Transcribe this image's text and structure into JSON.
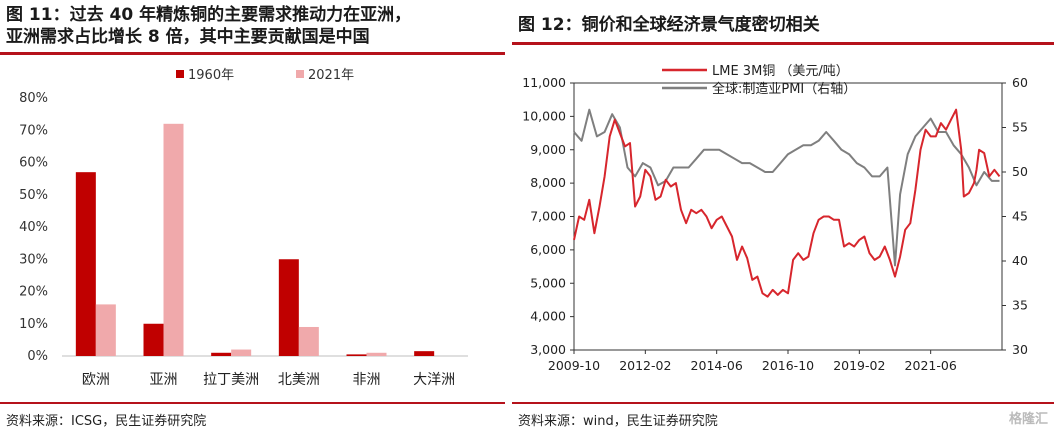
{
  "left_panel": {
    "title_line1": "图 11：过去 40 年精炼铜的主要需求推动力在亚洲，",
    "title_line2": "亚洲需求占比增长 8 倍，其中主要贡献国是中国",
    "source": "资料来源：ICSG，民生证券研究院"
  },
  "right_panel": {
    "title": "图 12：铜价和全球经济景气度密切相关",
    "source": "资料来源：wind，民生证券研究院",
    "watermark": "格隆汇"
  },
  "chart_data": [
    {
      "type": "bar",
      "categories": [
        "欧洲",
        "亚洲",
        "拉丁美洲",
        "北美洲",
        "非洲",
        "大洋洲"
      ],
      "series": [
        {
          "name": "1960年",
          "color": "#c00000",
          "values": [
            57,
            10,
            1,
            30,
            0.5,
            1.5
          ]
        },
        {
          "name": "2021年",
          "color": "#f0a9ab",
          "values": [
            16,
            72,
            2,
            9,
            1,
            0
          ]
        }
      ],
      "ylim": [
        0,
        80
      ],
      "yticks": [
        "0%",
        "10%",
        "20%",
        "30%",
        "40%",
        "50%",
        "60%",
        "70%",
        "80%"
      ],
      "legend_position": "top"
    },
    {
      "type": "line",
      "x_ticks": [
        "2009-10",
        "2012-02",
        "2014-06",
        "2016-10",
        "2019-02",
        "2021-06"
      ],
      "left_yticks": [
        "3,000",
        "4,000",
        "5,000",
        "6,000",
        "7,000",
        "8,000",
        "9,000",
        "10,000",
        "11,000"
      ],
      "right_yticks": [
        "30",
        "35",
        "40",
        "45",
        "50",
        "55",
        "60"
      ],
      "ylim_left": [
        3000,
        11000
      ],
      "ylim_right": [
        30,
        60
      ],
      "xlim": [
        "2009-10",
        "2023-10"
      ],
      "legend_position": "top-center",
      "series": [
        {
          "name": "LME 3M铜 （美元/吨）",
          "axis": "left",
          "color": "#d7262d",
          "points": [
            [
              "2009-10",
              6300
            ],
            [
              "2009-12",
              7000
            ],
            [
              "2010-02",
              6900
            ],
            [
              "2010-04",
              7500
            ],
            [
              "2010-06",
              6500
            ],
            [
              "2010-08",
              7300
            ],
            [
              "2010-10",
              8200
            ],
            [
              "2010-12",
              9400
            ],
            [
              "2011-02",
              9900
            ],
            [
              "2011-04",
              9500
            ],
            [
              "2011-06",
              9100
            ],
            [
              "2011-08",
              9200
            ],
            [
              "2011-10",
              7300
            ],
            [
              "2011-12",
              7600
            ],
            [
              "2012-02",
              8400
            ],
            [
              "2012-04",
              8200
            ],
            [
              "2012-06",
              7500
            ],
            [
              "2012-08",
              7600
            ],
            [
              "2012-10",
              8100
            ],
            [
              "2012-12",
              7900
            ],
            [
              "2013-02",
              8000
            ],
            [
              "2013-04",
              7200
            ],
            [
              "2013-06",
              6800
            ],
            [
              "2013-08",
              7200
            ],
            [
              "2013-10",
              7100
            ],
            [
              "2013-12",
              7200
            ],
            [
              "2014-02",
              7000
            ],
            [
              "2014-04",
              6650
            ],
            [
              "2014-06",
              6900
            ],
            [
              "2014-08",
              7000
            ],
            [
              "2014-10",
              6700
            ],
            [
              "2014-12",
              6400
            ],
            [
              "2015-02",
              5700
            ],
            [
              "2015-04",
              6100
            ],
            [
              "2015-06",
              5750
            ],
            [
              "2015-08",
              5100
            ],
            [
              "2015-10",
              5200
            ],
            [
              "2015-12",
              4700
            ],
            [
              "2016-02",
              4600
            ],
            [
              "2016-04",
              4800
            ],
            [
              "2016-06",
              4650
            ],
            [
              "2016-08",
              4800
            ],
            [
              "2016-10",
              4700
            ],
            [
              "2016-12",
              5700
            ],
            [
              "2017-02",
              5900
            ],
            [
              "2017-04",
              5700
            ],
            [
              "2017-06",
              5800
            ],
            [
              "2017-08",
              6500
            ],
            [
              "2017-10",
              6900
            ],
            [
              "2017-12",
              7000
            ],
            [
              "2018-02",
              7000
            ],
            [
              "2018-04",
              6900
            ],
            [
              "2018-06",
              6900
            ],
            [
              "2018-08",
              6100
            ],
            [
              "2018-10",
              6200
            ],
            [
              "2018-12",
              6100
            ],
            [
              "2019-02",
              6300
            ],
            [
              "2019-04",
              6400
            ],
            [
              "2019-06",
              5900
            ],
            [
              "2019-08",
              5700
            ],
            [
              "2019-10",
              5800
            ],
            [
              "2019-12",
              6100
            ],
            [
              "2020-02",
              5700
            ],
            [
              "2020-04",
              5200
            ],
            [
              "2020-06",
              5800
            ],
            [
              "2020-08",
              6600
            ],
            [
              "2020-10",
              6800
            ],
            [
              "2020-12",
              7800
            ],
            [
              "2021-02",
              9000
            ],
            [
              "2021-04",
              9600
            ],
            [
              "2021-06",
              9400
            ],
            [
              "2021-08",
              9400
            ],
            [
              "2021-10",
              9800
            ],
            [
              "2021-12",
              9600
            ],
            [
              "2022-02",
              9900
            ],
            [
              "2022-04",
              10200
            ],
            [
              "2022-06",
              9000
            ],
            [
              "2022-07",
              7600
            ],
            [
              "2022-09",
              7700
            ],
            [
              "2022-11",
              8000
            ],
            [
              "2022-12",
              8400
            ],
            [
              "2023-01",
              9000
            ],
            [
              "2023-03",
              8900
            ],
            [
              "2023-05",
              8200
            ],
            [
              "2023-07",
              8400
            ],
            [
              "2023-09",
              8200
            ]
          ]
        },
        {
          "name": "全球:制造业PMI（右轴）",
          "axis": "right",
          "color": "#7f7f7f",
          "points": [
            [
              "2009-10",
              54.5
            ],
            [
              "2010-01",
              53.5
            ],
            [
              "2010-04",
              57.0
            ],
            [
              "2010-07",
              54.0
            ],
            [
              "2010-10",
              54.5
            ],
            [
              "2011-01",
              56.5
            ],
            [
              "2011-04",
              55.0
            ],
            [
              "2011-07",
              50.5
            ],
            [
              "2011-10",
              49.5
            ],
            [
              "2012-01",
              51.0
            ],
            [
              "2012-04",
              50.5
            ],
            [
              "2012-07",
              48.5
            ],
            [
              "2012-10",
              49.0
            ],
            [
              "2013-01",
              50.5
            ],
            [
              "2013-04",
              50.5
            ],
            [
              "2013-07",
              50.5
            ],
            [
              "2013-10",
              51.5
            ],
            [
              "2014-01",
              52.5
            ],
            [
              "2014-04",
              52.5
            ],
            [
              "2014-07",
              52.5
            ],
            [
              "2014-10",
              52.0
            ],
            [
              "2015-01",
              51.5
            ],
            [
              "2015-04",
              51.0
            ],
            [
              "2015-07",
              51.0
            ],
            [
              "2015-10",
              50.5
            ],
            [
              "2016-01",
              50.0
            ],
            [
              "2016-04",
              50.0
            ],
            [
              "2016-07",
              51.0
            ],
            [
              "2016-10",
              52.0
            ],
            [
              "2017-01",
              52.5
            ],
            [
              "2017-04",
              53.0
            ],
            [
              "2017-07",
              53.0
            ],
            [
              "2017-10",
              53.5
            ],
            [
              "2018-01",
              54.5
            ],
            [
              "2018-04",
              53.5
            ],
            [
              "2018-07",
              52.5
            ],
            [
              "2018-10",
              52.0
            ],
            [
              "2019-01",
              51.0
            ],
            [
              "2019-04",
              50.5
            ],
            [
              "2019-07",
              49.5
            ],
            [
              "2019-10",
              49.5
            ],
            [
              "2020-01",
              50.5
            ],
            [
              "2020-04",
              39.5
            ],
            [
              "2020-06",
              47.5
            ],
            [
              "2020-09",
              52.0
            ],
            [
              "2020-12",
              54.0
            ],
            [
              "2021-03",
              55.0
            ],
            [
              "2021-06",
              56.0
            ],
            [
              "2021-09",
              54.5
            ],
            [
              "2021-12",
              54.5
            ],
            [
              "2022-03",
              53.0
            ],
            [
              "2022-06",
              52.0
            ],
            [
              "2022-09",
              50.5
            ],
            [
              "2022-12",
              48.5
            ],
            [
              "2023-03",
              50.0
            ],
            [
              "2023-06",
              49.0
            ],
            [
              "2023-09",
              49.0
            ]
          ]
        }
      ]
    }
  ]
}
